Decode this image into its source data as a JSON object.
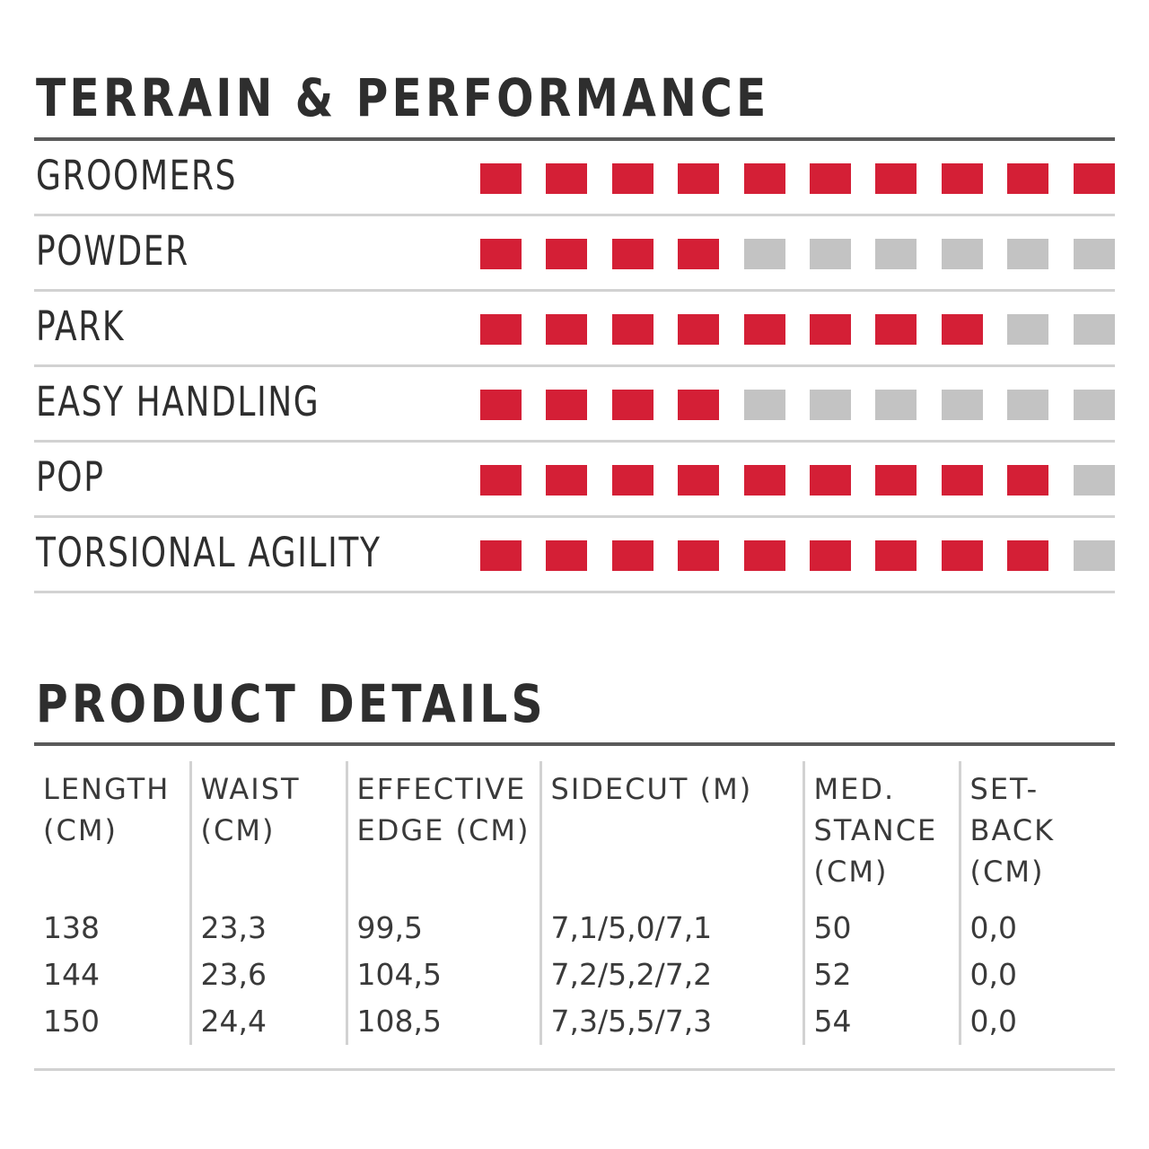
{
  "terrain": {
    "title": "TERRAIN & PERFORMANCE",
    "max_rating": 10,
    "colors": {
      "filled": "#d41f36",
      "empty": "#c3c3c3"
    },
    "rows": [
      {
        "label": "GROOMERS",
        "rating": 10
      },
      {
        "label": "POWDER",
        "rating": 4
      },
      {
        "label": "PARK",
        "rating": 8
      },
      {
        "label": "EASY HANDLING",
        "rating": 4
      },
      {
        "label": "POP",
        "rating": 9
      },
      {
        "label": "TORSIONAL AGILITY",
        "rating": 9
      }
    ]
  },
  "details": {
    "title": "PRODUCT DETAILS",
    "columns": [
      [
        "LENGTH",
        "(CM)"
      ],
      [
        "WAIST",
        "(CM)"
      ],
      [
        "EFFECTIVE",
        "EDGE (CM)"
      ],
      [
        "SIDECUT (M)"
      ],
      [
        "MED.",
        "STANCE",
        "(CM)"
      ],
      [
        "SET-",
        "BACK",
        "(CM)"
      ]
    ],
    "rows": [
      [
        "138",
        "23,3",
        "99,5",
        "7,1/5,0/7,1",
        "50",
        "0,0"
      ],
      [
        "144",
        "23,6",
        "104,5",
        "7,2/5,2/7,2",
        "52",
        "0,0"
      ],
      [
        "150",
        "24,4",
        "108,5",
        "7,3/5,5/7,3",
        "54",
        "0,0"
      ]
    ]
  }
}
